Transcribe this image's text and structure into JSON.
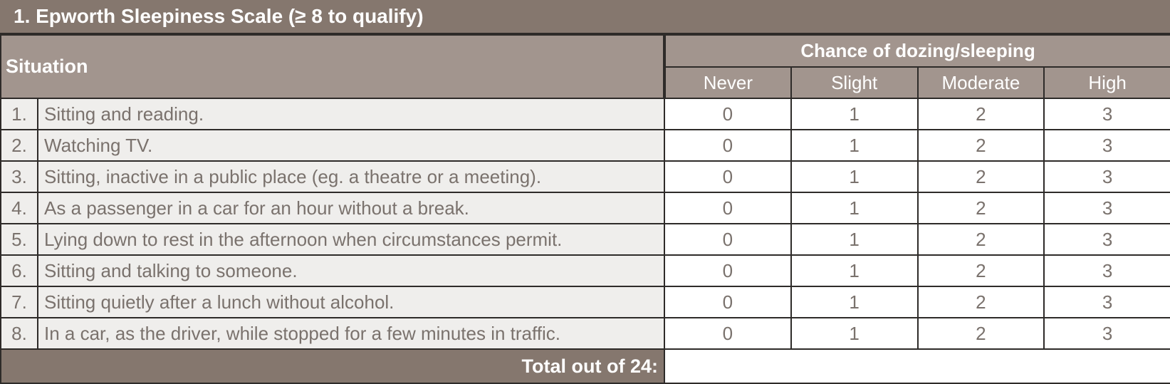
{
  "title": "1. Epworth Sleepiness Scale (≥ 8 to qualify)",
  "header": {
    "situation": "Situation",
    "chance": "Chance of dozing/sleeping",
    "levels": [
      "Never",
      "Slight",
      "Moderate",
      "High"
    ]
  },
  "rows": [
    {
      "num": "1.",
      "text": "Sitting and reading.",
      "scores": [
        "0",
        "1",
        "2",
        "3"
      ]
    },
    {
      "num": "2.",
      "text": "Watching TV.",
      "scores": [
        "0",
        "1",
        "2",
        "3"
      ]
    },
    {
      "num": "3.",
      "text": "Sitting, inactive in a public place (eg. a theatre or a meeting).",
      "scores": [
        "0",
        "1",
        "2",
        "3"
      ]
    },
    {
      "num": "4.",
      "text": "As a passenger in a car for an hour without a break.",
      "scores": [
        "0",
        "1",
        "2",
        "3"
      ]
    },
    {
      "num": "5.",
      "text": "Lying down to rest in the afternoon when circumstances permit.",
      "scores": [
        "0",
        "1",
        "2",
        "3"
      ]
    },
    {
      "num": "6.",
      "text": "Sitting and talking to someone.",
      "scores": [
        "0",
        "1",
        "2",
        "3"
      ]
    },
    {
      "num": "7.",
      "text": "Sitting quietly after a lunch without alcohol.",
      "scores": [
        "0",
        "1",
        "2",
        "3"
      ]
    },
    {
      "num": "8.",
      "text": "In a car, as the driver, while stopped for a few minutes in traffic.",
      "scores": [
        "0",
        "1",
        "2",
        "3"
      ]
    }
  ],
  "total": {
    "label": "Total out of 24:",
    "value": ""
  }
}
